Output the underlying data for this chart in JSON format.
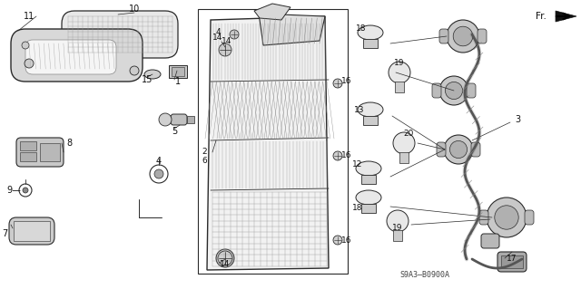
{
  "bg_color": "#ffffff",
  "fig_width": 6.4,
  "fig_height": 3.19,
  "diagram_code": "S9A3—B0900A",
  "line_color": "#2a2a2a",
  "gray1": "#cccccc",
  "gray2": "#aaaaaa",
  "gray3": "#888888",
  "label_fontsize": 6.5,
  "label_color": "#111111"
}
